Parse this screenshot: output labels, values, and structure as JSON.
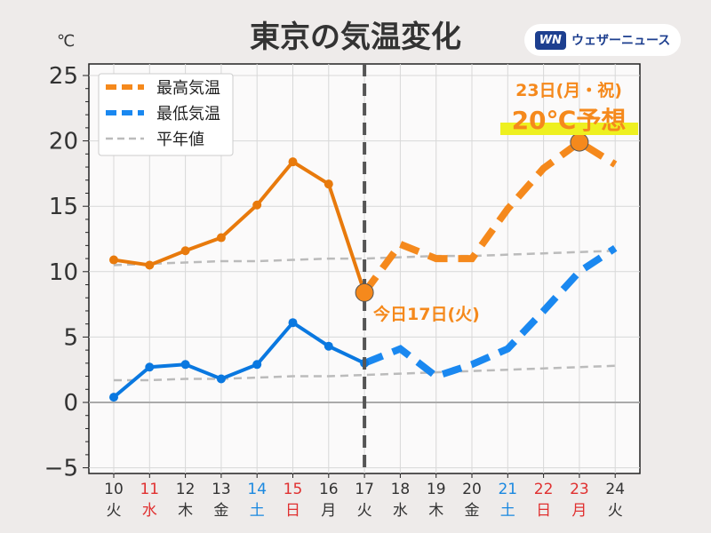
{
  "title": "東京の気温変化",
  "logo": {
    "mark": "WN",
    "text": "ウェザーニュース"
  },
  "colors": {
    "high": "#e87a0c",
    "high_forecast": "#f5891c",
    "low": "#0a78e0",
    "low_forecast": "#1a88f0",
    "normal": "#bbbbbb",
    "highlight": "#eef020",
    "sat": "#1a88e0",
    "sun": "#e03030"
  },
  "chart_data": {
    "type": "line",
    "title": "東京の気温変化",
    "ylabel": "℃",
    "ylim": [
      -5,
      25
    ],
    "yticks": [
      "−5",
      "0",
      "5",
      "10",
      "15",
      "20",
      "25"
    ],
    "ytick_values": [
      -5,
      0,
      5,
      10,
      15,
      20,
      25
    ],
    "x": [
      10,
      11,
      12,
      13,
      14,
      15,
      16,
      17,
      18,
      19,
      20,
      21,
      22,
      23,
      24
    ],
    "days": [
      "10",
      "11",
      "12",
      "13",
      "14",
      "15",
      "16",
      "17",
      "18",
      "19",
      "20",
      "21",
      "22",
      "23",
      "24"
    ],
    "weekdays": [
      "火",
      "水",
      "木",
      "金",
      "土",
      "日",
      "月",
      "火",
      "水",
      "木",
      "金",
      "土",
      "日",
      "月",
      "火"
    ],
    "day_colors": [
      "n",
      "h",
      "n",
      "n",
      "s",
      "h",
      "n",
      "n",
      "n",
      "n",
      "n",
      "s",
      "h",
      "h",
      "n"
    ],
    "today_index": 7,
    "series": [
      {
        "name": "最高気温",
        "values": [
          10.9,
          10.5,
          11.6,
          12.6,
          15.1,
          18.4,
          16.7,
          8.4,
          12.1,
          11.0,
          11.0,
          14.8,
          17.9,
          19.9,
          18.2
        ]
      },
      {
        "name": "最低気温",
        "values": [
          0.4,
          2.7,
          2.9,
          1.8,
          2.9,
          6.1,
          4.3,
          3.0,
          4.1,
          2.0,
          2.9,
          4.1,
          7.0,
          10.0,
          11.8
        ]
      },
      {
        "name": "平年値",
        "high": [
          10.5,
          10.6,
          10.7,
          10.8,
          10.8,
          10.9,
          11.0,
          11.0,
          11.1,
          11.2,
          11.2,
          11.3,
          11.4,
          11.5,
          11.6
        ],
        "low": [
          1.7,
          1.7,
          1.8,
          1.8,
          1.9,
          2.0,
          2.0,
          2.1,
          2.2,
          2.3,
          2.4,
          2.5,
          2.6,
          2.7,
          2.8
        ]
      }
    ],
    "legend": [
      "最高気温",
      "最低気温",
      "平年値"
    ],
    "legend_position": "top-left",
    "annotations": {
      "today": "今日17日(火)",
      "peak_date": "23日(月・祝)",
      "peak_text": "20℃予想"
    }
  }
}
